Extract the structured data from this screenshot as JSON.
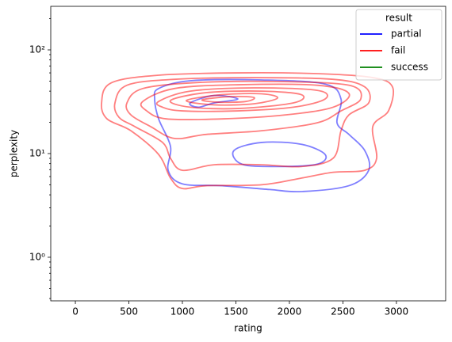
{
  "chart_data": {
    "type": "contour",
    "xlabel": "rating",
    "ylabel": "perplexity",
    "xlim": [
      -230,
      3460
    ],
    "xticks": [
      0,
      500,
      1000,
      1500,
      2000,
      2500,
      3000
    ],
    "ylim": [
      0.38,
      263
    ],
    "yscale": "log",
    "yticks": [
      {
        "value": 1,
        "label": "10⁰"
      },
      {
        "value": 10,
        "label": "10¹"
      },
      {
        "value": 100,
        "label": "10²"
      }
    ],
    "yminorticks": [
      0.4,
      0.5,
      0.6,
      0.7,
      0.8,
      0.9,
      2,
      3,
      4,
      5,
      6,
      7,
      8,
      9,
      20,
      30,
      40,
      50,
      60,
      70,
      80,
      90,
      200
    ],
    "legend_title": "result",
    "legend_loc": "upper right",
    "alpha": 0.5,
    "series": [
      {
        "name": "partial",
        "color": "#0000ff",
        "contours": [
          {
            "x": [
              778,
              1074,
              1741,
              2334,
              2482,
              2445,
              2556,
              2704,
              2741,
              2556,
              2111,
              1815,
              1371,
              1000,
              867,
              889,
              778,
              741
            ],
            "y": [
              42.4,
              50.4,
              51.3,
              46.8,
              33.6,
              19.8,
              15.3,
              10.7,
              6.9,
              4.9,
              4.3,
              4.5,
              4.9,
              5.1,
              6.9,
              11.7,
              21.6,
              33.6
            ]
          },
          {
            "x": [
              1074,
              1297,
              1519,
              1297,
              1148
            ],
            "y": [
              30.8,
              36.3,
              33.6,
              30.8,
              28
            ]
          },
          {
            "x": [
              1482,
              1741,
              2111,
              2334,
              2259,
              1889,
              1556
            ],
            "y": [
              10.7,
              12.8,
              12.3,
              9.8,
              7.9,
              7.5,
              7.9
            ]
          }
        ]
      },
      {
        "name": "fail",
        "color": "#ff0000",
        "contours": [
          {
            "x": [
              245,
              333,
              778,
              1519,
              2259,
              2779,
              2963,
              2926,
              2779,
              2815,
              2704,
              2408,
              2111,
              1741,
              1222,
              1000,
              889,
              778,
              519,
              296
            ],
            "y": [
              30.8,
              48,
              57,
              60,
              59,
              54,
              44,
              25.8,
              18.2,
              9,
              6.9,
              6.6,
              5.8,
              5.0,
              4.9,
              4.6,
              5.8,
              9.8,
              16.6,
              21.6
            ]
          },
          {
            "x": [
              370,
              482,
              926,
              1667,
              2408,
              2704,
              2741,
              2556,
              2482,
              2408,
              2111,
              1741,
              1297,
              1000,
              889,
              815,
              556,
              407
            ],
            "y": [
              30.8,
              45.6,
              52,
              54,
              52,
              44,
              30.8,
              23.6,
              16.6,
              9,
              7.5,
              7.8,
              7.8,
              6.9,
              9,
              12.8,
              18.2,
              22.4
            ]
          },
          {
            "x": [
              482,
              630,
              1148,
              1889,
              2556,
              2667,
              2482,
              2259,
              1741,
              1222,
              926,
              704,
              519
            ],
            "y": [
              30.8,
              42.4,
              48.5,
              49.5,
              45.6,
              33.6,
              25.8,
              19.8,
              16.6,
              15.3,
              14.0,
              18.2,
              23.6
            ]
          },
          {
            "x": [
              630,
              926,
              1519,
              2259,
              2556,
              2408,
              1963,
              1371,
              852,
              667
            ],
            "y": [
              31.8,
              42.4,
              46.1,
              45.6,
              38,
              28,
              23.6,
              21.6,
              21.6,
              25.8
            ]
          },
          {
            "x": [
              778,
              1074,
              1667,
              2259,
              2334,
              2037,
              1519,
              1000,
              815
            ],
            "y": [
              31.8,
              40,
              43,
              40.7,
              33.6,
              28,
              25.8,
              25.8,
              28
            ]
          },
          {
            "x": [
              889,
              1222,
              1741,
              2111,
              2037,
              1519,
              1074
            ],
            "y": [
              32.5,
              38.7,
              40,
              37,
              30.8,
              27.2,
              28
            ]
          },
          {
            "x": [
              1037,
              1371,
              1741,
              1889,
              1667,
              1297
            ],
            "y": [
              32.5,
              37,
              37.7,
              34.3,
              30.2,
              29.5
            ]
          },
          {
            "x": [
              1185,
              1445,
              1667,
              1593,
              1334
            ],
            "y": [
              33,
              35.4,
              34.8,
              31.8,
              31.3
            ]
          }
        ]
      },
      {
        "name": "success",
        "color": "#008000",
        "contours": []
      }
    ]
  }
}
